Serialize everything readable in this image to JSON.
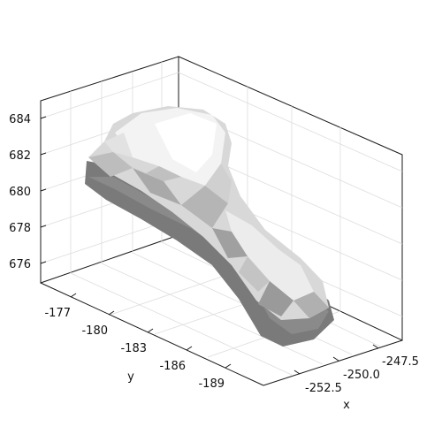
{
  "chart_data": {
    "type": "surface3d",
    "title": "",
    "xlabel": "x",
    "ylabel": "y",
    "zlabel": "",
    "x_ticks": [
      "-252.5",
      "-250.0",
      "-247.5"
    ],
    "y_ticks": [
      "-177",
      "-180",
      "-183",
      "-186",
      "-189"
    ],
    "z_ticks": [
      "676",
      "678",
      "680",
      "682",
      "684"
    ],
    "grid": true,
    "colors": {
      "face_light": "#f4f4f4",
      "face_mid": "#c8c8c8",
      "face_dark": "#8c8c8c",
      "face_shadow": "#6e6e6e",
      "frame": "#1a1a1a",
      "grid": "#dddddd"
    }
  }
}
